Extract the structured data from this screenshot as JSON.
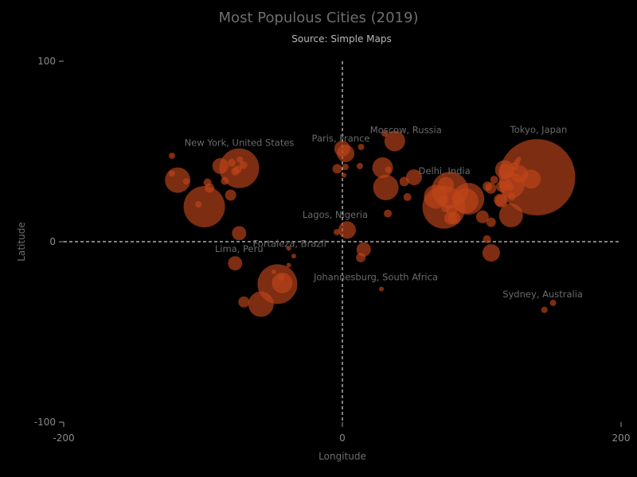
{
  "chart_data": {
    "type": "scatter",
    "title": "Most Populous Cities (2019)",
    "subtitle": "Source: Simple Maps",
    "xlabel": "Longitude",
    "ylabel": "Latitude",
    "xlim": [
      -200,
      200
    ],
    "ylim": [
      -100,
      100
    ],
    "xticks": [
      -200,
      0,
      200
    ],
    "yticks": [
      -100,
      0,
      100
    ],
    "reference_lines": {
      "x": 0,
      "y": 0,
      "style": "dashed"
    },
    "grid": false,
    "legend": "none",
    "colors": {
      "bubble": "#c0451a",
      "background": "#000000",
      "reference_line": "#ffffff"
    },
    "labels": [
      {
        "text": "Moscow, Russia",
        "x": 37.6,
        "y": 55.8
      },
      {
        "text": "Paris, France",
        "x": 2.3,
        "y": 48.9
      },
      {
        "text": "Tokyo, Japan",
        "x": 139.7,
        "y": 35.7
      },
      {
        "text": "New York, United States",
        "x": -74.0,
        "y": 40.7
      },
      {
        "text": "Delhi, India",
        "x": 77.2,
        "y": 28.6
      },
      {
        "text": "Lagos, Nigeria",
        "x": 3.4,
        "y": 6.5
      },
      {
        "text": "Fortaleza, Brazil",
        "x": -38.5,
        "y": -3.7
      },
      {
        "text": "Lima, Peru",
        "x": -77.0,
        "y": -12.0
      },
      {
        "text": "Johannesburg, South Africa",
        "x": 28.0,
        "y": -26.2
      },
      {
        "text": "Sydney, Australia",
        "x": 151.2,
        "y": -33.9
      }
    ],
    "points": [
      {
        "x": 139.7,
        "y": 35.7,
        "r": 48
      },
      {
        "x": -74.0,
        "y": 40.7,
        "r": 25
      },
      {
        "x": -99.1,
        "y": 19.4,
        "r": 26
      },
      {
        "x": -118.2,
        "y": 34.1,
        "r": 16
      },
      {
        "x": -87.6,
        "y": 41.9,
        "r": 10
      },
      {
        "x": -95.4,
        "y": 29.8,
        "r": 6
      },
      {
        "x": -96.8,
        "y": 32.8,
        "r": 5
      },
      {
        "x": -79.4,
        "y": 43.7,
        "r": 5
      },
      {
        "x": -75.2,
        "y": 40.0,
        "r": 5
      },
      {
        "x": -80.2,
        "y": 25.8,
        "r": 7
      },
      {
        "x": -84.4,
        "y": 33.7,
        "r": 5
      },
      {
        "x": -71.1,
        "y": 42.4,
        "r": 5
      },
      {
        "x": -77.0,
        "y": 38.9,
        "r": 5
      },
      {
        "x": -73.6,
        "y": 45.5,
        "r": 4
      },
      {
        "x": -122.4,
        "y": 37.8,
        "r": 4
      },
      {
        "x": -122.3,
        "y": 47.6,
        "r": 4
      },
      {
        "x": -112.1,
        "y": 33.4,
        "r": 4
      },
      {
        "x": -103.3,
        "y": 20.7,
        "r": 4
      },
      {
        "x": -74.1,
        "y": 4.7,
        "r": 9
      },
      {
        "x": -77.0,
        "y": -12.0,
        "r": 9
      },
      {
        "x": -46.6,
        "y": -23.5,
        "r": 25
      },
      {
        "x": -43.2,
        "y": -22.9,
        "r": 13
      },
      {
        "x": -58.4,
        "y": -34.6,
        "r": 16
      },
      {
        "x": -70.7,
        "y": -33.4,
        "r": 7
      },
      {
        "x": -38.5,
        "y": -3.7,
        "r": 3
      },
      {
        "x": -34.9,
        "y": -8.0,
        "r": 3
      },
      {
        "x": -38.5,
        "y": -13.0,
        "r": 3
      },
      {
        "x": -43.9,
        "y": -19.9,
        "r": 4
      },
      {
        "x": -49.3,
        "y": -16.7,
        "r": 3
      },
      {
        "x": 2.3,
        "y": 48.9,
        "r": 11
      },
      {
        "x": -0.1,
        "y": 51.5,
        "r": 10
      },
      {
        "x": -3.7,
        "y": 40.4,
        "r": 6
      },
      {
        "x": 12.5,
        "y": 41.9,
        "r": 4
      },
      {
        "x": 13.4,
        "y": 52.5,
        "r": 4
      },
      {
        "x": 2.2,
        "y": 41.4,
        "r": 4
      },
      {
        "x": 37.6,
        "y": 55.8,
        "r": 13
      },
      {
        "x": 28.9,
        "y": 41.0,
        "r": 13
      },
      {
        "x": 31.2,
        "y": 30.0,
        "r": 16
      },
      {
        "x": 51.4,
        "y": 35.7,
        "r": 10
      },
      {
        "x": 44.4,
        "y": 33.3,
        "r": 6
      },
      {
        "x": 46.7,
        "y": 24.7,
        "r": 5
      },
      {
        "x": 30.3,
        "y": 59.9,
        "r": 4
      },
      {
        "x": 32.9,
        "y": 39.9,
        "r": 4
      },
      {
        "x": 3.4,
        "y": 6.5,
        "r": 11
      },
      {
        "x": 15.3,
        "y": -4.3,
        "r": 9
      },
      {
        "x": 13.2,
        "y": -8.8,
        "r": 6
      },
      {
        "x": -4.0,
        "y": 5.3,
        "r": 4
      },
      {
        "x": 32.6,
        "y": 15.6,
        "r": 5
      },
      {
        "x": 28.0,
        "y": -26.2,
        "r": 3
      },
      {
        "x": 1.2,
        "y": 36.8,
        "r": 3
      },
      {
        "x": 77.2,
        "y": 28.6,
        "r": 23
      },
      {
        "x": 72.9,
        "y": 19.1,
        "r": 27
      },
      {
        "x": 88.4,
        "y": 22.6,
        "r": 16
      },
      {
        "x": 90.4,
        "y": 23.8,
        "r": 20
      },
      {
        "x": 67.0,
        "y": 24.9,
        "r": 15
      },
      {
        "x": 74.3,
        "y": 31.5,
        "r": 10
      },
      {
        "x": 80.3,
        "y": 13.1,
        "r": 8
      },
      {
        "x": 77.6,
        "y": 13.0,
        "r": 8
      },
      {
        "x": 78.5,
        "y": 17.4,
        "r": 7
      },
      {
        "x": 72.6,
        "y": 23.0,
        "r": 6
      },
      {
        "x": 73.9,
        "y": 18.5,
        "r": 5
      },
      {
        "x": 100.5,
        "y": 13.8,
        "r": 8
      },
      {
        "x": 106.7,
        "y": 10.8,
        "r": 6
      },
      {
        "x": 106.8,
        "y": -6.2,
        "r": 11
      },
      {
        "x": 103.8,
        "y": 1.4,
        "r": 5
      },
      {
        "x": 121.5,
        "y": 31.2,
        "r": 16
      },
      {
        "x": 116.4,
        "y": 39.9,
        "r": 12
      },
      {
        "x": 113.3,
        "y": 23.1,
        "r": 8
      },
      {
        "x": 114.1,
        "y": 22.5,
        "r": 8
      },
      {
        "x": 106.5,
        "y": 29.6,
        "r": 7
      },
      {
        "x": 104.1,
        "y": 30.7,
        "r": 6
      },
      {
        "x": 117.2,
        "y": 39.1,
        "r": 9
      },
      {
        "x": 114.3,
        "y": 30.6,
        "r": 7
      },
      {
        "x": 108.9,
        "y": 34.3,
        "r": 5
      },
      {
        "x": 118.8,
        "y": 32.1,
        "r": 5
      },
      {
        "x": 120.2,
        "y": 30.3,
        "r": 5
      },
      {
        "x": 126.9,
        "y": 37.5,
        "r": 11
      },
      {
        "x": 135.5,
        "y": 34.7,
        "r": 12
      },
      {
        "x": 121.0,
        "y": 14.6,
        "r": 15
      },
      {
        "x": 123.4,
        "y": 41.8,
        "r": 5
      },
      {
        "x": 125.3,
        "y": 43.9,
        "r": 4
      },
      {
        "x": 121.5,
        "y": 25.0,
        "r": 5
      },
      {
        "x": 126.6,
        "y": 45.8,
        "r": 3
      },
      {
        "x": 151.2,
        "y": -33.9,
        "r": 4
      },
      {
        "x": 145.0,
        "y": -37.8,
        "r": 4
      }
    ]
  }
}
